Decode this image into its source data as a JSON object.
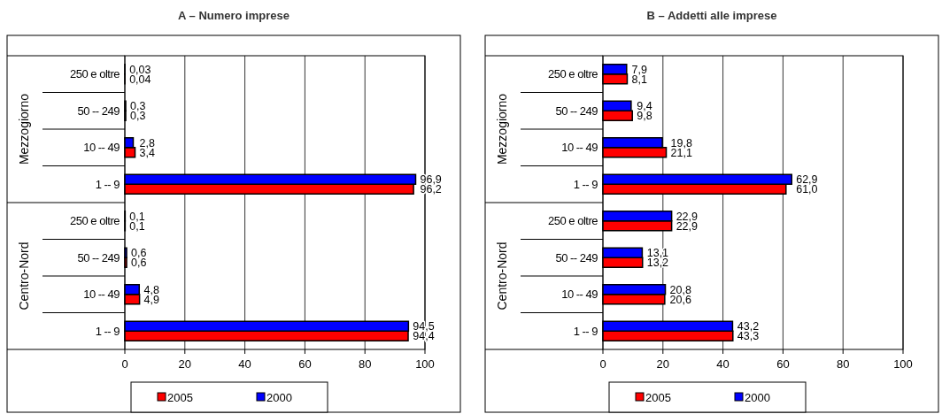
{
  "chart_data": [
    {
      "type": "bar",
      "orientation": "horizontal",
      "title": "A – Numero imprese",
      "categories": [
        "250 e oltre",
        "50 -- 249",
        "10 -- 49",
        "1 -- 9",
        "250 e oltre",
        "50 -- 249",
        "10 -- 49",
        "1 -- 9"
      ],
      "annotations": [
        "Mezzogiorno",
        "Centro-Nord"
      ],
      "xlim": [
        0,
        100
      ],
      "xticks": [
        0,
        20,
        40,
        60,
        80,
        100
      ],
      "grid": "x",
      "legend": "bottom",
      "series": [
        {
          "name": "2005",
          "color": "#ff0000",
          "values": [
            0.04,
            0.3,
            3.4,
            96.2,
            0.1,
            0.6,
            4.9,
            94.4
          ],
          "value_labels": [
            "0,04",
            "0,3",
            "3,4",
            "96,2",
            "0,1",
            "0,6",
            "4,9",
            "94,4"
          ]
        },
        {
          "name": "2000",
          "color": "#0000ff",
          "values": [
            0.03,
            0.3,
            2.8,
            96.9,
            0.1,
            0.6,
            4.8,
            94.5
          ],
          "value_labels": [
            "0,03",
            "0,3",
            "2,8",
            "96,9",
            "0,1",
            "0,6",
            "4,8",
            "94,5"
          ]
        }
      ]
    },
    {
      "type": "bar",
      "orientation": "horizontal",
      "title": "B – Addetti alle imprese",
      "categories": [
        "250 e oltre",
        "50 -- 249",
        "10 -- 49",
        "1 -- 9",
        "250 e oltre",
        "50 -- 249",
        "10 -- 49",
        "1 -- 9"
      ],
      "annotations": [
        "Mezzogiorno",
        "Centro-Nord"
      ],
      "xlim": [
        0,
        100
      ],
      "xticks": [
        0,
        20,
        40,
        60,
        80,
        100
      ],
      "grid": "x",
      "legend": "bottom",
      "series": [
        {
          "name": "2005",
          "color": "#ff0000",
          "values": [
            8.1,
            9.8,
            21.1,
            61.0,
            22.9,
            13.2,
            20.6,
            43.3
          ],
          "value_labels": [
            "8,1",
            "9,8",
            "21,1",
            "61,0",
            "22,9",
            "13,2",
            "20,6",
            "43,3"
          ]
        },
        {
          "name": "2000",
          "color": "#0000ff",
          "values": [
            7.9,
            9.4,
            19.8,
            62.9,
            22.9,
            13.1,
            20.8,
            43.2
          ],
          "value_labels": [
            "7,9",
            "9,4",
            "19,8",
            "62,9",
            "22,9",
            "13,1",
            "20,8",
            "43,2"
          ]
        }
      ]
    }
  ]
}
